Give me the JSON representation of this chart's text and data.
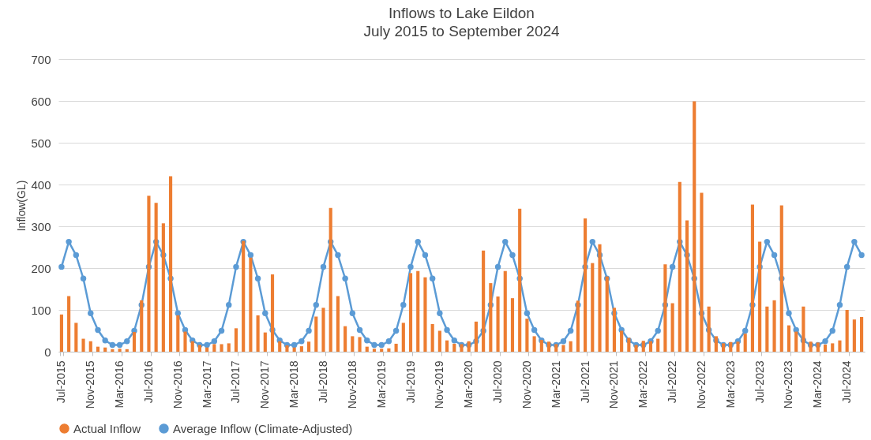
{
  "chart_data": {
    "type": "bar",
    "title": "Inflows to Lake Eildon",
    "subtitle": "July 2015 to September 2024",
    "ylabel": "Inflow(GL)",
    "categories": [
      "Jul-2015",
      null,
      null,
      null,
      "Nov-2015",
      null,
      null,
      null,
      "Mar-2016",
      null,
      null,
      null,
      "Jul-2016",
      null,
      null,
      null,
      "Nov-2016",
      null,
      null,
      null,
      "Mar-2017",
      null,
      null,
      null,
      "Jul-2017",
      null,
      null,
      null,
      "Nov-2017",
      null,
      null,
      null,
      "Mar-2018",
      null,
      null,
      null,
      "Jul-2018",
      null,
      null,
      null,
      "Nov-2018",
      null,
      null,
      null,
      "Mar-2019",
      null,
      null,
      null,
      "Jul-2019",
      null,
      null,
      null,
      "Nov-2019",
      null,
      null,
      null,
      "Mar-2020",
      null,
      null,
      null,
      "Jul-2020",
      null,
      null,
      null,
      "Nov-2020",
      null,
      null,
      null,
      "Mar-2021",
      null,
      null,
      null,
      "Jul-2021",
      null,
      null,
      null,
      "Nov-2021",
      null,
      null,
      null,
      "Mar-2022",
      null,
      null,
      null,
      "Jul-2022",
      null,
      null,
      null,
      "Nov-2022",
      null,
      null,
      null,
      "Mar-2023",
      null,
      null,
      null,
      "Jul-2023",
      null,
      null,
      null,
      "Nov-2023",
      null,
      null,
      null,
      "Mar-2024",
      null,
      null,
      null,
      "Jul-2024",
      null,
      null
    ],
    "series": [
      {
        "name": "Actual Inflow",
        "color": "#ed7d31",
        "values": [
          89,
          133,
          69,
          31,
          25,
          12,
          10,
          6,
          7,
          6,
          47,
          123,
          373,
          356,
          307,
          420,
          87,
          48,
          25,
          16,
          10,
          18,
          18,
          20,
          56,
          265,
          225,
          87,
          46,
          185,
          25,
          15,
          10,
          13,
          24,
          84,
          105,
          344,
          133,
          61,
          37,
          35,
          12,
          7,
          7,
          8,
          19,
          69,
          188,
          193,
          178,
          66,
          50,
          27,
          19,
          18,
          25,
          72,
          242,
          164,
          132,
          193,
          128,
          342,
          79,
          37,
          28,
          24,
          18,
          16,
          25,
          122,
          319,
          212,
          257,
          180,
          105,
          50,
          33,
          16,
          26,
          25,
          31,
          209,
          116,
          406,
          314,
          599,
          380,
          108,
          37,
          20,
          23,
          24,
          43,
          352,
          263,
          108,
          123,
          350,
          63,
          48,
          108,
          24,
          22,
          17,
          20,
          27,
          100,
          77,
          83
        ]
      },
      {
        "name": "Average Inflow (Climate-Adjusted)",
        "type": "line",
        "color": "#5b9bd5",
        "marker": "circle",
        "values": [
          203,
          263,
          231,
          175,
          92,
          52,
          27,
          16,
          16,
          25,
          50,
          112,
          203,
          263,
          231,
          175,
          92,
          52,
          27,
          16,
          16,
          25,
          50,
          112,
          203,
          263,
          231,
          175,
          92,
          52,
          27,
          16,
          16,
          25,
          50,
          112,
          203,
          263,
          231,
          175,
          92,
          52,
          27,
          16,
          16,
          25,
          50,
          112,
          203,
          263,
          231,
          175,
          92,
          52,
          27,
          16,
          16,
          25,
          50,
          112,
          203,
          263,
          231,
          175,
          92,
          52,
          27,
          16,
          16,
          25,
          50,
          112,
          203,
          263,
          231,
          175,
          92,
          52,
          27,
          16,
          16,
          25,
          50,
          112,
          203,
          263,
          231,
          175,
          92,
          52,
          27,
          16,
          16,
          25,
          50,
          112,
          203,
          263,
          231,
          175,
          92,
          52,
          27,
          16,
          16,
          25,
          50,
          112,
          203,
          263,
          231
        ]
      }
    ],
    "ylim": [
      0,
      700
    ],
    "yticks": [
      0,
      100,
      200,
      300,
      400,
      500,
      600,
      700
    ],
    "grid": "y",
    "legend": "bottom"
  }
}
